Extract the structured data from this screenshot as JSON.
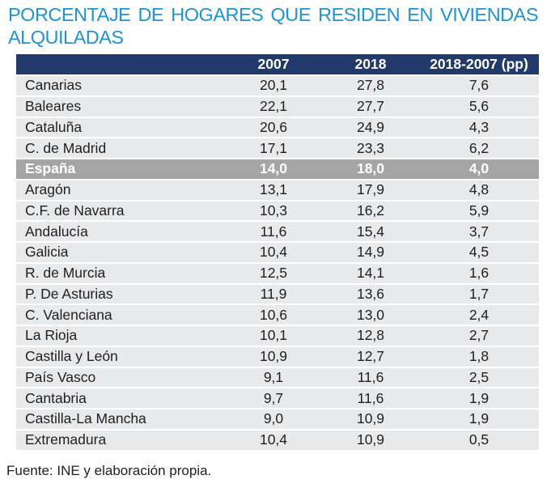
{
  "colors": {
    "title": "#1f93d3",
    "header_bg": "#213a6b",
    "header_text": "#ffffff",
    "row_bg": "#e8e9eb",
    "highlight_bg": "#a5a5a5",
    "highlight_text": "#ffffff",
    "text": "#1f1f1f"
  },
  "chart_data": {
    "type": "table",
    "title": "PORCENTAJE DE HOGARES QUE RESIDEN EN VIVIENDAS ALQUILADAS",
    "columns": [
      "",
      "2007",
      "2018",
      "2018-2007 (pp)"
    ],
    "rows": [
      {
        "region": "Canarias",
        "values": [
          "20,1",
          "27,8",
          "7,6"
        ]
      },
      {
        "region": "Baleares",
        "values": [
          "22,1",
          "27,7",
          "5,6"
        ]
      },
      {
        "region": "Cataluña",
        "values": [
          "20,6",
          "24,9",
          "4,3"
        ]
      },
      {
        "region": "C. de Madrid",
        "values": [
          "17,1",
          "23,3",
          "6,2"
        ]
      },
      {
        "region": "España",
        "values": [
          "14,0",
          "18,0",
          "4,0"
        ],
        "highlight": true
      },
      {
        "region": "Aragón",
        "values": [
          "13,1",
          "17,9",
          "4,8"
        ]
      },
      {
        "region": "C.F. de Navarra",
        "values": [
          "10,3",
          "16,2",
          "5,9"
        ]
      },
      {
        "region": "Andalucía",
        "values": [
          "11,6",
          "15,4",
          "3,7"
        ]
      },
      {
        "region": "Galicia",
        "values": [
          "10,4",
          "14,9",
          "4,5"
        ]
      },
      {
        "region": "R. de Murcia",
        "values": [
          "12,5",
          "14,1",
          "1,6"
        ]
      },
      {
        "region": "P. De Asturias",
        "values": [
          "11,9",
          "13,6",
          "1,7"
        ]
      },
      {
        "region": "C. Valenciana",
        "values": [
          "10,6",
          "13,0",
          "2,4"
        ]
      },
      {
        "region": "La Rioja",
        "values": [
          "10,1",
          "12,8",
          "2,7"
        ]
      },
      {
        "region": "Castilla y León",
        "values": [
          "10,9",
          "12,7",
          "1,8"
        ]
      },
      {
        "region": "País Vasco",
        "values": [
          "9,1",
          "11,6",
          "2,5"
        ]
      },
      {
        "region": "Cantabria",
        "values": [
          "9,7",
          "11,6",
          "1,9"
        ]
      },
      {
        "region": "Castilla-La Mancha",
        "values": [
          "9,0",
          "10,9",
          "1,9"
        ]
      },
      {
        "region": "Extremadura",
        "values": [
          "10,4",
          "10,9",
          "0,5"
        ]
      }
    ],
    "source": "Fuente: INE y elaboración propia."
  }
}
